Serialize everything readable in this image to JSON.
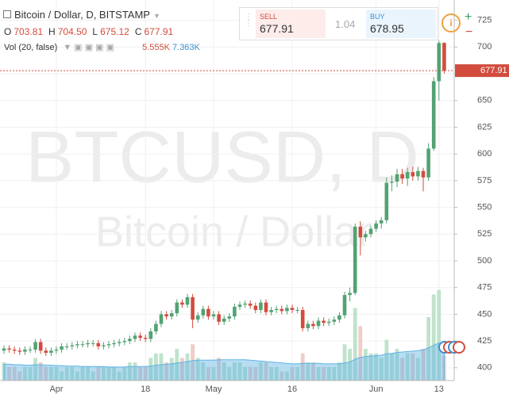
{
  "chart_data": {
    "type": "candlestick",
    "title": "Bitcoin / Dollar, D, BITSTAMP",
    "watermark": [
      "BTCUSD, D",
      "Bitcoin / Dollar"
    ],
    "categories": [
      null,
      null,
      null,
      null,
      null,
      null,
      null,
      null,
      null,
      null,
      "Apr",
      null,
      null,
      null,
      null,
      null,
      null,
      null,
      null,
      null,
      null,
      null,
      null,
      null,
      null,
      null,
      null,
      "18",
      null,
      null,
      null,
      null,
      null,
      null,
      null,
      null,
      null,
      null,
      null,
      null,
      "May",
      null,
      null,
      null,
      null,
      null,
      null,
      null,
      null,
      null,
      null,
      null,
      null,
      null,
      null,
      "16",
      null,
      null,
      null,
      null,
      null,
      null,
      null,
      null,
      null,
      null,
      null,
      null,
      null,
      null,
      null,
      "Jun",
      null,
      null,
      null,
      null,
      null,
      null,
      null,
      null,
      null,
      null,
      null,
      "13",
      null
    ],
    "open": [
      416,
      418,
      417,
      416,
      415,
      417,
      417,
      424,
      416,
      414,
      416,
      417,
      420,
      420,
      421,
      422,
      422,
      423,
      423,
      420,
      421,
      422,
      423,
      424,
      425,
      427,
      430,
      428,
      427,
      434,
      441,
      450,
      448,
      451,
      461,
      459,
      466,
      445,
      449,
      455,
      448,
      450,
      443,
      446,
      448,
      457,
      459,
      460,
      458,
      454,
      461,
      452,
      454,
      455,
      453,
      456,
      454,
      454,
      437,
      441,
      439,
      444,
      442,
      443,
      445,
      449,
      468,
      470,
      532,
      522,
      525,
      530,
      535,
      538,
      573,
      574,
      581,
      577,
      583,
      579,
      584,
      578,
      605,
      668,
      703.81
    ],
    "high": [
      421,
      421,
      420,
      419,
      420,
      420,
      427,
      427,
      419,
      419,
      420,
      423,
      423,
      424,
      425,
      425,
      426,
      426,
      426,
      424,
      425,
      426,
      427,
      428,
      430,
      433,
      433,
      431,
      437,
      444,
      453,
      453,
      454,
      464,
      464,
      469,
      469,
      452,
      458,
      458,
      453,
      453,
      449,
      451,
      460,
      462,
      463,
      463,
      461,
      464,
      464,
      457,
      458,
      458,
      459,
      459,
      457,
      457,
      444,
      444,
      447,
      447,
      446,
      448,
      452,
      471,
      475,
      535,
      537,
      528,
      533,
      538,
      541,
      578,
      580,
      586,
      586,
      587,
      588,
      588,
      587,
      610,
      672,
      706,
      704.5
    ],
    "low": [
      413,
      414,
      413,
      412,
      412,
      414,
      414,
      413,
      411,
      411,
      413,
      414,
      417,
      417,
      418,
      419,
      419,
      420,
      417,
      417,
      418,
      419,
      420,
      421,
      422,
      424,
      425,
      424,
      424,
      431,
      438,
      445,
      445,
      448,
      456,
      456,
      437,
      442,
      446,
      445,
      445,
      440,
      440,
      443,
      445,
      454,
      456,
      455,
      451,
      451,
      449,
      449,
      451,
      450,
      450,
      451,
      451,
      434,
      434,
      436,
      436,
      439,
      439,
      440,
      442,
      446,
      462,
      468,
      505,
      518,
      522,
      527,
      530,
      535,
      565,
      569,
      572,
      570,
      575,
      575,
      565,
      575,
      603,
      650,
      675.12
    ],
    "close": [
      418,
      417,
      416,
      415,
      417,
      417,
      424,
      416,
      414,
      416,
      417,
      420,
      420,
      421,
      422,
      422,
      423,
      423,
      420,
      421,
      422,
      423,
      424,
      425,
      427,
      430,
      428,
      427,
      434,
      441,
      450,
      448,
      451,
      461,
      459,
      466,
      445,
      449,
      455,
      448,
      450,
      443,
      446,
      448,
      457,
      459,
      460,
      458,
      454,
      461,
      452,
      454,
      455,
      453,
      456,
      454,
      454,
      437,
      441,
      439,
      444,
      442,
      443,
      445,
      449,
      468,
      470,
      532,
      522,
      525,
      530,
      535,
      538,
      573,
      574,
      581,
      577,
      583,
      579,
      584,
      578,
      605,
      668,
      703.81,
      677.91
    ],
    "volume": [
      4,
      3,
      3,
      2,
      3,
      3,
      5,
      4,
      3,
      3,
      3,
      2,
      3,
      3,
      2,
      3,
      3,
      2,
      3,
      3,
      3,
      3,
      2,
      3,
      4,
      4,
      3,
      3,
      5,
      6,
      6,
      4,
      5,
      7,
      5,
      6,
      8,
      5,
      4,
      3,
      3,
      5,
      4,
      3,
      4,
      4,
      3,
      3,
      3,
      4,
      4,
      3,
      3,
      2,
      2,
      3,
      3,
      6,
      4,
      4,
      3,
      3,
      3,
      3,
      4,
      8,
      7,
      16,
      12,
      7,
      6,
      6,
      5,
      9,
      6,
      7,
      5,
      6,
      6,
      5,
      7,
      14,
      19,
      20,
      5.555
    ],
    "volume_ma": [
      3.6,
      3.6,
      3.5,
      3.5,
      3.4,
      3.4,
      3.5,
      3.5,
      3.4,
      3.4,
      3.3,
      3.3,
      3.2,
      3.2,
      3.2,
      3.1,
      3.1,
      3.1,
      3.1,
      3.1,
      3.0,
      3.0,
      3.0,
      3.0,
      3.1,
      3.1,
      3.1,
      3.1,
      3.2,
      3.4,
      3.5,
      3.6,
      3.7,
      3.9,
      4.0,
      4.2,
      4.4,
      4.5,
      4.5,
      4.5,
      4.5,
      4.6,
      4.6,
      4.6,
      4.6,
      4.6,
      4.6,
      4.5,
      4.4,
      4.3,
      4.2,
      4.1,
      4.0,
      3.9,
      3.8,
      3.7,
      3.7,
      3.8,
      3.8,
      3.8,
      3.8,
      3.7,
      3.7,
      3.7,
      3.7,
      3.9,
      4.1,
      4.7,
      5.1,
      5.3,
      5.4,
      5.5,
      5.6,
      5.9,
      6.0,
      6.2,
      6.3,
      6.4,
      6.5,
      6.6,
      6.8,
      7.2,
      7.8,
      8.3,
      7.363
    ],
    "up_color": "#53a273",
    "down_color": "#d24c3e",
    "volume_up_color": "#bfe3cc",
    "volume_down_color": "#efcdc8",
    "volume_ma_color": "#5fb3e4",
    "ylim": [
      388,
      744
    ],
    "yticks": [
      400,
      425,
      450,
      475,
      500,
      525,
      550,
      575,
      600,
      625,
      650,
      675,
      700,
      725
    ],
    "vlim": [
      0,
      21
    ],
    "grid": true
  },
  "ui": {
    "ohlc": [
      [
        "O",
        "703.81"
      ],
      [
        "H",
        "704.50"
      ],
      [
        "L",
        "675.12"
      ],
      [
        "C",
        "677.91"
      ]
    ],
    "volume_label": "Vol (20, false)",
    "volume_value": "5.555K",
    "volume_ma_value": "7.363K",
    "sell_label": "SELL",
    "sell_price": "677.91",
    "spread": "1.04",
    "buy_label": "BUY",
    "buy_price": "678.95"
  }
}
